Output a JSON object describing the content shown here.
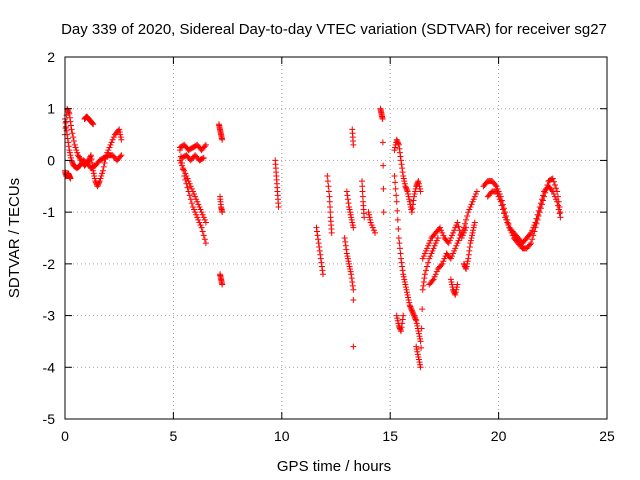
{
  "chart_data": {
    "type": "scatter",
    "title": "Day 339 of 2020, Sidereal Day-to-day VTEC variation (SDTVAR) for receiver sg27",
    "xlabel": "GPS time / hours",
    "ylabel": "SDTVAR / TECUs",
    "xlim": [
      0,
      25
    ],
    "ylim": [
      -5,
      2
    ],
    "xticks": [
      0,
      5,
      10,
      15,
      20,
      25
    ],
    "yticks": [
      -5,
      -4,
      -3,
      -2,
      -1,
      0,
      1,
      2
    ],
    "grid": true,
    "marker": "+",
    "color": "#ff0000",
    "series": [
      {
        "name": "sg27",
        "segments": [
          {
            "x": [
              0.0,
              0.1,
              0.2,
              0.3,
              0.45,
              0.6,
              0.75,
              0.9,
              1.0,
              1.1,
              1.2,
              1.3,
              1.4,
              1.5,
              1.6,
              1.75,
              1.9,
              2.1,
              2.3,
              2.5,
              2.6
            ],
            "y": [
              0.5,
              1.0,
              0.9,
              0.6,
              0.3,
              0.1,
              0.0,
              -0.1,
              -0.05,
              0.0,
              0.1,
              -0.2,
              -0.4,
              -0.5,
              -0.4,
              -0.2,
              0.1,
              0.3,
              0.5,
              0.6,
              0.4
            ]
          },
          {
            "x": [
              0.0,
              0.1,
              0.2,
              0.3,
              0.4,
              0.55,
              0.7,
              0.85,
              1.0,
              1.2,
              1.4,
              1.6,
              1.8,
              2.0,
              2.2,
              2.4,
              2.6
            ],
            "y": [
              0.8,
              0.5,
              0.2,
              0.0,
              -0.1,
              -0.15,
              -0.1,
              0.0,
              -0.05,
              -0.15,
              -0.1,
              0.0,
              0.05,
              0.1,
              0.1,
              0.0,
              0.1
            ]
          },
          {
            "x": [
              0.0,
              0.05,
              0.1,
              0.15,
              0.2,
              0.25
            ],
            "y": [
              -0.2,
              -0.3,
              -0.3,
              -0.25,
              -0.3,
              -0.35
            ]
          },
          {
            "x": [
              0.9,
              1.0,
              1.1,
              1.2,
              1.3
            ],
            "y": [
              0.8,
              0.85,
              0.8,
              0.75,
              0.7
            ]
          },
          {
            "x": [
              5.3,
              5.5,
              5.7,
              5.9,
              6.1,
              6.3,
              6.5
            ],
            "y": [
              0.2,
              -0.3,
              -0.6,
              -0.9,
              -1.1,
              -1.3,
              -1.6
            ]
          },
          {
            "x": [
              5.3,
              5.5,
              5.7,
              5.9,
              6.1,
              6.3,
              6.5
            ],
            "y": [
              0.0,
              -0.2,
              -0.4,
              -0.6,
              -0.8,
              -1.0,
              -1.2
            ]
          },
          {
            "x": [
              5.3,
              5.5,
              5.7,
              5.9,
              6.1,
              6.3,
              6.5
            ],
            "y": [
              0.25,
              0.3,
              0.2,
              0.25,
              0.3,
              0.2,
              0.3
            ]
          },
          {
            "x": [
              5.4,
              5.6,
              5.8,
              6.0,
              6.2,
              6.4
            ],
            "y": [
              0.05,
              0.1,
              0.0,
              0.1,
              0.0,
              0.05
            ]
          },
          {
            "x": [
              7.1,
              7.15,
              7.2,
              7.25
            ],
            "y": [
              0.7,
              0.6,
              0.5,
              0.4
            ]
          },
          {
            "x": [
              7.15,
              7.2,
              7.25
            ],
            "y": [
              -0.7,
              -0.9,
              -1.0
            ]
          },
          {
            "x": [
              7.15,
              7.2,
              7.25
            ],
            "y": [
              -2.2,
              -2.3,
              -2.4
            ]
          },
          {
            "x": [
              9.7,
              9.75,
              9.8,
              9.85
            ],
            "y": [
              0.0,
              -0.3,
              -0.6,
              -0.9
            ]
          },
          {
            "x": [
              11.6,
              11.7,
              11.8,
              11.9
            ],
            "y": [
              -1.3,
              -1.6,
              -1.9,
              -2.2
            ]
          },
          {
            "x": [
              12.1,
              12.2,
              12.25,
              12.3
            ],
            "y": [
              -0.3,
              -0.7,
              -1.1,
              -1.4
            ]
          },
          {
            "x": [
              12.9,
              13.0,
              13.1,
              13.2,
              13.3
            ],
            "y": [
              -1.5,
              -1.8,
              -2.0,
              -2.2,
              -2.5
            ]
          },
          {
            "x": [
              13.0,
              13.1,
              13.2,
              13.3
            ],
            "y": [
              -0.6,
              -0.9,
              -1.1,
              -1.3
            ]
          },
          {
            "x": [
              13.25,
              13.3
            ],
            "y": [
              0.6,
              0.3
            ]
          },
          {
            "x": [
              13.3
            ],
            "y": [
              -2.7
            ]
          },
          {
            "x": [
              13.3
            ],
            "y": [
              -3.6
            ]
          },
          {
            "x": [
              13.7,
              13.75,
              13.8
            ],
            "y": [
              -0.4,
              -0.8,
              -1.1
            ]
          },
          {
            "x": [
              14.0,
              14.1,
              14.3
            ],
            "y": [
              -1.0,
              -1.2,
              -1.4
            ]
          },
          {
            "x": [
              14.55,
              14.6,
              14.65,
              14.7
            ],
            "y": [
              1.0,
              0.9,
              0.8,
              -1.0
            ]
          },
          {
            "x": [
              15.2,
              15.3,
              15.4,
              15.5,
              15.6,
              15.7,
              15.8,
              15.9,
              16.0,
              16.1,
              16.2,
              16.3,
              16.4
            ],
            "y": [
              -0.3,
              -0.8,
              -1.5,
              -1.9,
              -2.2,
              -2.4,
              -2.6,
              -2.8,
              -2.9,
              -3.0,
              -3.1,
              -3.3,
              -3.5
            ]
          },
          {
            "x": [
              15.2,
              15.3,
              15.4,
              15.5,
              15.6,
              15.7,
              15.8,
              15.9,
              16.0,
              16.1,
              16.2,
              16.3,
              16.4
            ],
            "y": [
              0.2,
              0.4,
              0.3,
              0.0,
              -0.3,
              -0.5,
              -0.6,
              -0.8,
              -1.0,
              -0.7,
              -0.5,
              -0.4,
              -0.6
            ]
          },
          {
            "x": [
              15.3,
              15.4,
              15.5,
              15.6
            ],
            "y": [
              -3.0,
              -3.2,
              -3.3,
              -3.0
            ]
          },
          {
            "x": [
              16.2,
              16.3,
              16.4,
              16.5,
              16.6,
              16.8,
              17.0,
              17.2
            ],
            "y": [
              -3.6,
              -3.8,
              -4.0,
              -2.5,
              -2.2,
              -1.9,
              -1.7,
              -1.5
            ]
          },
          {
            "x": [
              16.5,
              16.7,
              16.9,
              17.1,
              17.3,
              17.5,
              17.7,
              17.9,
              18.1,
              18.3,
              18.5
            ],
            "y": [
              -1.9,
              -1.7,
              -1.5,
              -1.4,
              -1.3,
              -1.5,
              -1.6,
              -1.4,
              -1.2,
              -1.5,
              -1.3
            ]
          },
          {
            "x": [
              16.8,
              17.0,
              17.2,
              17.4,
              17.6,
              17.8,
              18.0,
              18.2,
              18.4,
              18.6,
              18.8,
              19.0
            ],
            "y": [
              -2.4,
              -2.3,
              -2.1,
              -2.0,
              -1.8,
              -1.9,
              -1.7,
              -1.5,
              -1.3,
              -1.0,
              -0.8,
              -0.6
            ]
          },
          {
            "x": [
              17.8,
              17.9,
              18.0,
              18.1
            ],
            "y": [
              -2.3,
              -2.5,
              -2.6,
              -2.4
            ]
          },
          {
            "x": [
              18.4,
              18.5,
              18.6,
              18.7,
              18.8,
              18.9
            ],
            "y": [
              -2.0,
              -2.1,
              -1.9,
              -1.6,
              -1.4,
              -1.2
            ]
          },
          {
            "x": [
              19.3,
              19.5,
              19.7,
              19.9,
              20.1,
              20.3,
              20.5,
              20.7,
              20.9,
              21.1,
              21.3,
              21.5,
              21.7,
              21.9,
              22.1,
              22.3,
              22.5,
              22.7,
              22.85
            ],
            "y": [
              -0.5,
              -0.4,
              -0.4,
              -0.5,
              -0.7,
              -1.0,
              -1.3,
              -1.5,
              -1.6,
              -1.7,
              -1.7,
              -1.6,
              -1.3,
              -1.0,
              -0.7,
              -0.4,
              -0.35,
              -0.6,
              -1.0
            ]
          },
          {
            "x": [
              19.5,
              19.7,
              19.9,
              20.1,
              20.3,
              20.5,
              20.7,
              20.9,
              21.1,
              21.3,
              21.5,
              21.7,
              21.9,
              22.1,
              22.3,
              22.5,
              22.7,
              22.85
            ],
            "y": [
              -0.7,
              -0.6,
              -0.6,
              -0.8,
              -1.1,
              -1.3,
              -1.4,
              -1.5,
              -1.6,
              -1.5,
              -1.4,
              -1.2,
              -0.9,
              -0.6,
              -0.5,
              -0.6,
              -0.8,
              -1.1
            ]
          }
        ]
      }
    ]
  }
}
